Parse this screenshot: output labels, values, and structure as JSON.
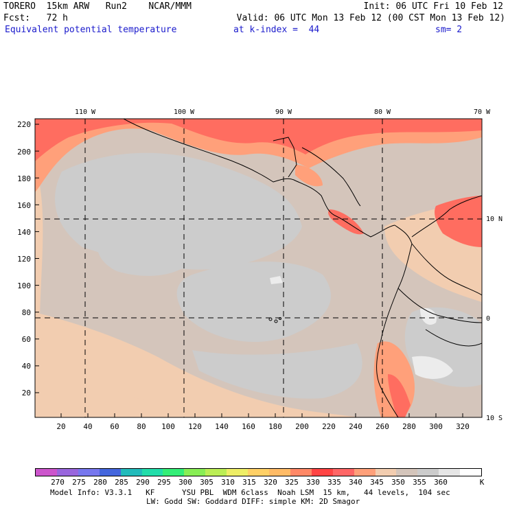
{
  "header": {
    "line1_left": "TORERO  15km ARW   Run2    NCAR/MMM",
    "line1_right": "Init: 06 UTC Fri 10 Feb 12",
    "line2_left": "Fcst:   72 h",
    "line2_right": "Valid: 06 UTC Mon 13 Feb 12 (00 CST Mon 13 Feb 12)",
    "field_name": "Equivalent potential temperature",
    "level": "at k-index =  44",
    "smoothing": "sm= 2"
  },
  "map": {
    "lon_labels": [
      "110 W",
      "100 W",
      "90 W",
      "80 W",
      "70 W"
    ],
    "lat_labels": [
      "10 N",
      "0",
      "10 S"
    ],
    "y_ticks": [
      "220",
      "200",
      "180",
      "160",
      "140",
      "120",
      "100",
      "80",
      "60",
      "40",
      "20"
    ],
    "x_ticks": [
      "20",
      "40",
      "60",
      "80",
      "100",
      "120",
      "140",
      "160",
      "180",
      "200",
      "220",
      "240",
      "260",
      "280",
      "300",
      "320"
    ],
    "fill_colors": {
      "lowest_shown": "#f2cdb0",
      "mid": "#d4c5bb",
      "high": "#cccccc",
      "warm": "#ffa07a",
      "hot": "#ff5a55",
      "white": "#ececec"
    }
  },
  "legend": {
    "labels": [
      "270",
      "275",
      "280",
      "285",
      "290",
      "295",
      "300",
      "305",
      "310",
      "315",
      "320",
      "325",
      "330",
      "335",
      "340",
      "345",
      "350",
      "355",
      "360"
    ],
    "unit": "K",
    "colors": [
      "#cc55cc",
      "#9966dd",
      "#7777ee",
      "#4466dd",
      "#22bbbb",
      "#22ddaa",
      "#33ee77",
      "#88ee55",
      "#bbee55",
      "#eeee66",
      "#ffd066",
      "#ffbb66",
      "#ff8866",
      "#ff4444",
      "#ff6666",
      "#ffa07a",
      "#f2cdb0",
      "#d4c5bb",
      "#cccccc",
      "#e6e6e6",
      "#ffffff"
    ]
  },
  "footer": {
    "line1": "Model Info: V3.3.1   KF      YSU PBL  WDM 6class  Noah LSM  15 km,   44 levels,  104 sec",
    "line2": "LW: Godd SW: Goddard DIFF: simple KM: 2D Smagor"
  }
}
